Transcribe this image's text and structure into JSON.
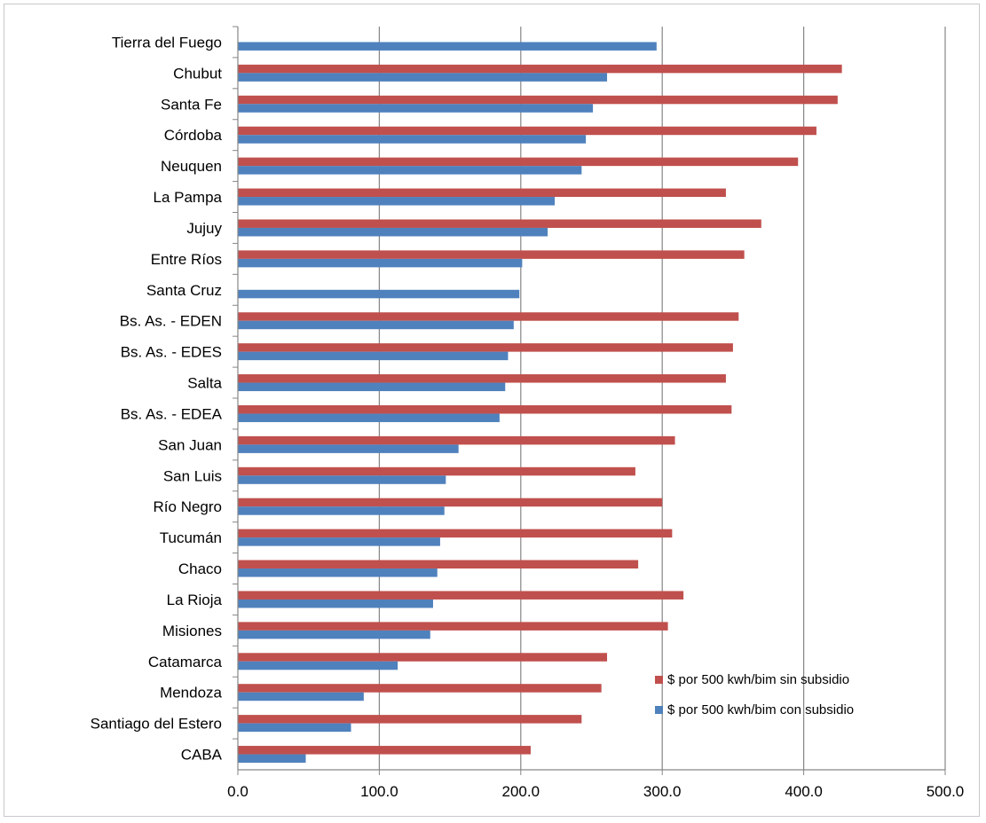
{
  "chart_data": {
    "type": "bar",
    "orientation": "horizontal",
    "title": "",
    "xlabel": "",
    "ylabel": "",
    "xlim": [
      0,
      500
    ],
    "ticks": [
      "0.0",
      "100.0",
      "200.0",
      "300.0",
      "400.0",
      "500.0"
    ],
    "tick_values": [
      0,
      100,
      200,
      300,
      400,
      500
    ],
    "grid": true,
    "legend_position": "lower-right",
    "categories": [
      "Tierra del Fuego",
      "Chubut",
      "Santa Fe",
      "Córdoba",
      "Neuquen",
      "La Pampa",
      "Jujuy",
      "Entre Ríos",
      "Santa Cruz",
      "Bs. As. - EDEN",
      "Bs. As. - EDES",
      "Salta",
      "Bs. As. - EDEA",
      "San Juan",
      "San Luis",
      "Río Negro",
      "Tucumán",
      "Chaco",
      "La Rioja",
      "Misiones",
      "Catamarca",
      "Mendoza",
      "Santiago del Estero",
      "CABA"
    ],
    "series": [
      {
        "name": "$ por 500 kwh/bim sin subsidio",
        "color": "#c0504d",
        "values": [
          null,
          427,
          424,
          409,
          396,
          345,
          370,
          358,
          null,
          354,
          350,
          345,
          349,
          309,
          281,
          300,
          307,
          283,
          315,
          304,
          261,
          257,
          243,
          207
        ]
      },
      {
        "name": "$ por 500 kwh/bim con subsidio",
        "color": "#4f81bd",
        "values": [
          296,
          261,
          251,
          246,
          243,
          224,
          219,
          201,
          199,
          195,
          191,
          189,
          185,
          156,
          147,
          146,
          143,
          141,
          138,
          136,
          113,
          89,
          80,
          48
        ]
      }
    ]
  }
}
